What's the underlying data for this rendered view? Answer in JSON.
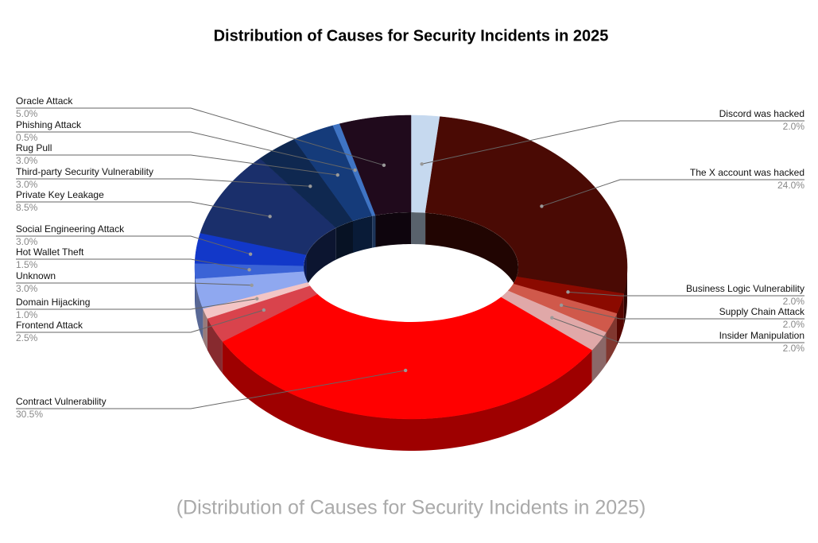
{
  "chart_data": {
    "type": "donut3d",
    "title": "Distribution of Causes for Security Incidents in 2025",
    "subtitle": "(Distribution of Causes for Security Incidents in 2025)",
    "categories": [
      "Discord was hacked",
      "The X account was hacked",
      "Business Logic Vulnerability",
      "Supply Chain Attack",
      "Insider Manipulation",
      "Contract Vulnerability",
      "Frontend Attack",
      "Domain Hijacking",
      "Unknown",
      "Hot Wallet Theft",
      "Social Engineering Attack",
      "Private Key Leakage",
      "Third-party Security Vulnerability",
      "Rug Pull",
      "Phishing Attack",
      "Oracle Attack"
    ],
    "values": [
      2.0,
      24.0,
      2.0,
      2.0,
      2.0,
      30.5,
      2.5,
      1.0,
      3.0,
      1.5,
      3.0,
      8.5,
      3.0,
      3.0,
      0.5,
      5.0
    ],
    "value_labels": [
      "2.0%",
      "24.0%",
      "2.0%",
      "2.0%",
      "2.0%",
      "30.5%",
      "2.5%",
      "1.0%",
      "3.0%",
      "1.5%",
      "3.0%",
      "8.5%",
      "3.0%",
      "3.0%",
      "0.5%",
      "5.0%"
    ],
    "colors": [
      "#c6d9ef",
      "#4a0a04",
      "#8b0a00",
      "#d0594b",
      "#e0a8a8",
      "#ff0000",
      "#d9434c",
      "#f3c5c5",
      "#8fa8f0",
      "#3b63d6",
      "#1238c9",
      "#1a2f6b",
      "#0f2850",
      "#153b7a",
      "#3f74c4",
      "#200a1c"
    ]
  }
}
